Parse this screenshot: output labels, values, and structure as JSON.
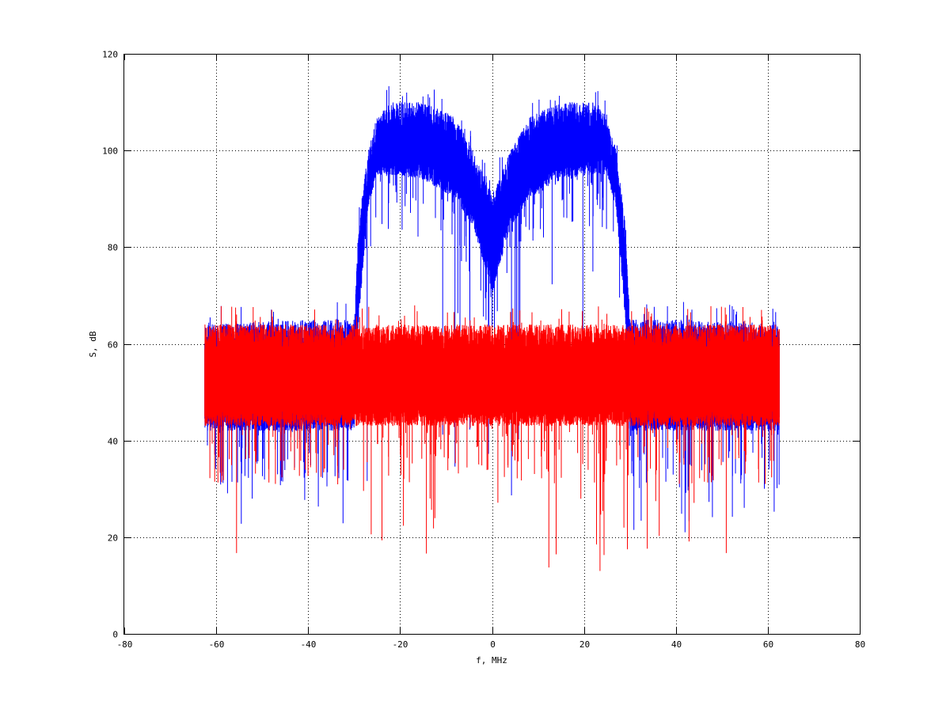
{
  "chart_data": {
    "type": "line",
    "title": "",
    "xlabel": "f, MHz",
    "ylabel": "S, dB",
    "xlim": [
      -80,
      80
    ],
    "ylim": [
      0,
      120
    ],
    "xticks": [
      -80,
      -60,
      -40,
      -20,
      0,
      20,
      40,
      60,
      80
    ],
    "yticks": [
      0,
      20,
      40,
      60,
      80,
      100,
      120
    ],
    "grid": true,
    "legend": "none",
    "x_range": [
      -62.5,
      62.5
    ],
    "series": [
      {
        "color": "#0000ff",
        "envelope_x": [
          -62.5,
          -40,
          -30,
          -29,
          -27,
          -25,
          -22,
          -15,
          -8,
          -4,
          -1,
          0,
          1,
          4,
          8,
          15,
          22,
          25,
          27,
          29,
          30,
          40,
          62.5
        ],
        "envelope_upper": [
          64,
          65,
          65,
          85,
          100,
          107,
          110,
          110,
          107,
          100,
          93,
          91,
          93,
          100,
          107,
          110,
          110,
          107,
          100,
          85,
          65,
          65,
          64
        ],
        "envelope_lower": [
          42,
          42,
          42,
          65,
          88,
          95,
          95,
          94,
          90,
          84,
          74,
          70,
          74,
          84,
          90,
          94,
          95,
          95,
          88,
          65,
          42,
          42,
          42
        ],
        "min_value": 21
      },
      {
        "color": "#ff0000",
        "envelope_x": [
          -62.5,
          0,
          62.5
        ],
        "envelope_upper": [
          64,
          64,
          64
        ],
        "envelope_lower": [
          43,
          43,
          43
        ],
        "min_value": 13
      }
    ]
  }
}
